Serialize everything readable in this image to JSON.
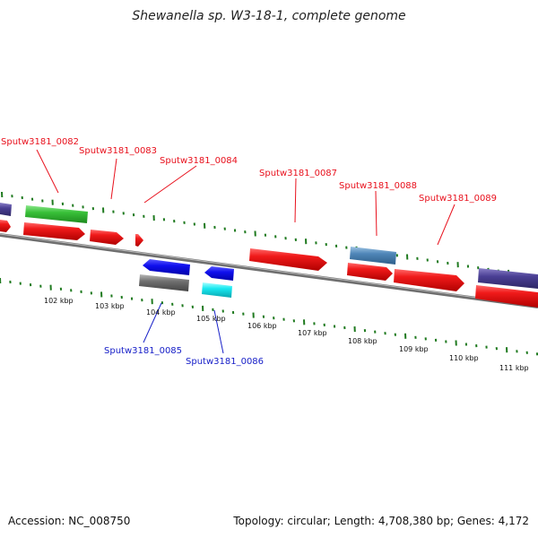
{
  "title": "Shewanella sp. W3-18-1, complete genome",
  "footer": {
    "accession": "Accession: NC_008750",
    "summary": "Topology: circular; Length: 4,708,380 bp; Genes: 4,172"
  },
  "scale_labels": [
    "102 kbp",
    "103 kbp",
    "104 kbp",
    "105 kbp",
    "106 kbp",
    "107 kbp",
    "108 kbp",
    "109 kbp",
    "110 kbp",
    "111 kbp"
  ],
  "gene_labels_forward": [
    "Sputw3181_0082",
    "Sputw3181_0083",
    "Sputw3181_0084",
    "Sputw3181_0087",
    "Sputw3181_0088",
    "Sputw3181_0089"
  ],
  "gene_labels_reverse": [
    "Sputw3181_0085",
    "Sputw3181_0086"
  ],
  "colors": {
    "forward_cds": "#e8101c",
    "reverse_cds": "#1212e0",
    "backbone": "#808080",
    "tick": "#1f7a1f",
    "label_forward": "#e8101c",
    "label_reverse": "#1820c8",
    "feature_green": "#3cc03c",
    "feature_purple": "#4a3f94",
    "feature_steelblue": "#4f86b8",
    "feature_gray": "#707070",
    "feature_cyan": "#18e8f0"
  }
}
